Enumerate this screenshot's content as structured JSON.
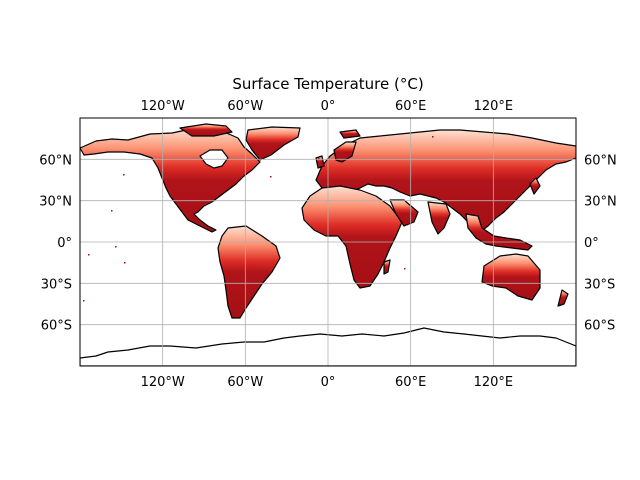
{
  "title": "Surface Temperature (°C)",
  "projection": "plate-carree",
  "extent": {
    "lon": [
      -180,
      180
    ],
    "lat": [
      -90,
      90
    ]
  },
  "gridlines": {
    "shown": true,
    "color": "#b0b0b0"
  },
  "lon_ticks": [
    {
      "value": -120,
      "label": "120°W"
    },
    {
      "value": -60,
      "label": "60°W"
    },
    {
      "value": 0,
      "label": "0°"
    },
    {
      "value": 60,
      "label": "60°E"
    },
    {
      "value": 120,
      "label": "120°E"
    }
  ],
  "lat_ticks": [
    {
      "value": 60,
      "label": "60°N"
    },
    {
      "value": 30,
      "label": "30°N"
    },
    {
      "value": 0,
      "label": "0°"
    },
    {
      "value": -30,
      "label": "30°S"
    },
    {
      "value": -60,
      "label": "60°S"
    }
  ],
  "colormap": {
    "name": "Reds",
    "low": "#fff5f0",
    "high": "#a50f15"
  },
  "coastline_color": "#000000",
  "ocean_color": "#ffffff"
}
